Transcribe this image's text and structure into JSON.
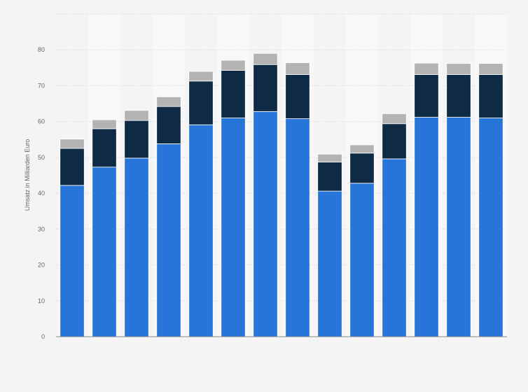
{
  "chart_data": {
    "type": "bar",
    "stacked": true,
    "title": "",
    "xlabel": "",
    "ylabel": "Umsatz in Milliarden Euro",
    "ylim": [
      0,
      90
    ],
    "yticks": [
      0,
      10,
      20,
      30,
      40,
      50,
      60,
      70,
      80
    ],
    "grid": true,
    "legend": "none",
    "categories": [
      "",
      "",
      "",
      "",
      "",
      "",
      "",
      "",
      "",
      "",
      "",
      "",
      "",
      ""
    ],
    "series": [
      {
        "color": "#2775d9",
        "values": [
          42.2,
          47.3,
          49.8,
          53.8,
          59.1,
          61.0,
          62.8,
          60.8,
          40.6,
          42.8,
          49.6,
          61.2,
          61.2,
          61.0
        ]
      },
      {
        "color": "#0f2a44",
        "values": [
          10.3,
          10.7,
          10.5,
          10.4,
          12.2,
          13.3,
          13.1,
          12.3,
          8.1,
          8.4,
          9.8,
          11.9,
          11.9,
          12.1
        ]
      },
      {
        "color": "#b3b3b3",
        "values": [
          2.6,
          2.5,
          2.8,
          2.7,
          2.7,
          2.8,
          3.1,
          3.3,
          2.2,
          2.3,
          2.8,
          3.2,
          3.1,
          3.1
        ]
      }
    ],
    "band_colors": [
      "#f4f4f4",
      "#f8f8f8"
    ]
  }
}
